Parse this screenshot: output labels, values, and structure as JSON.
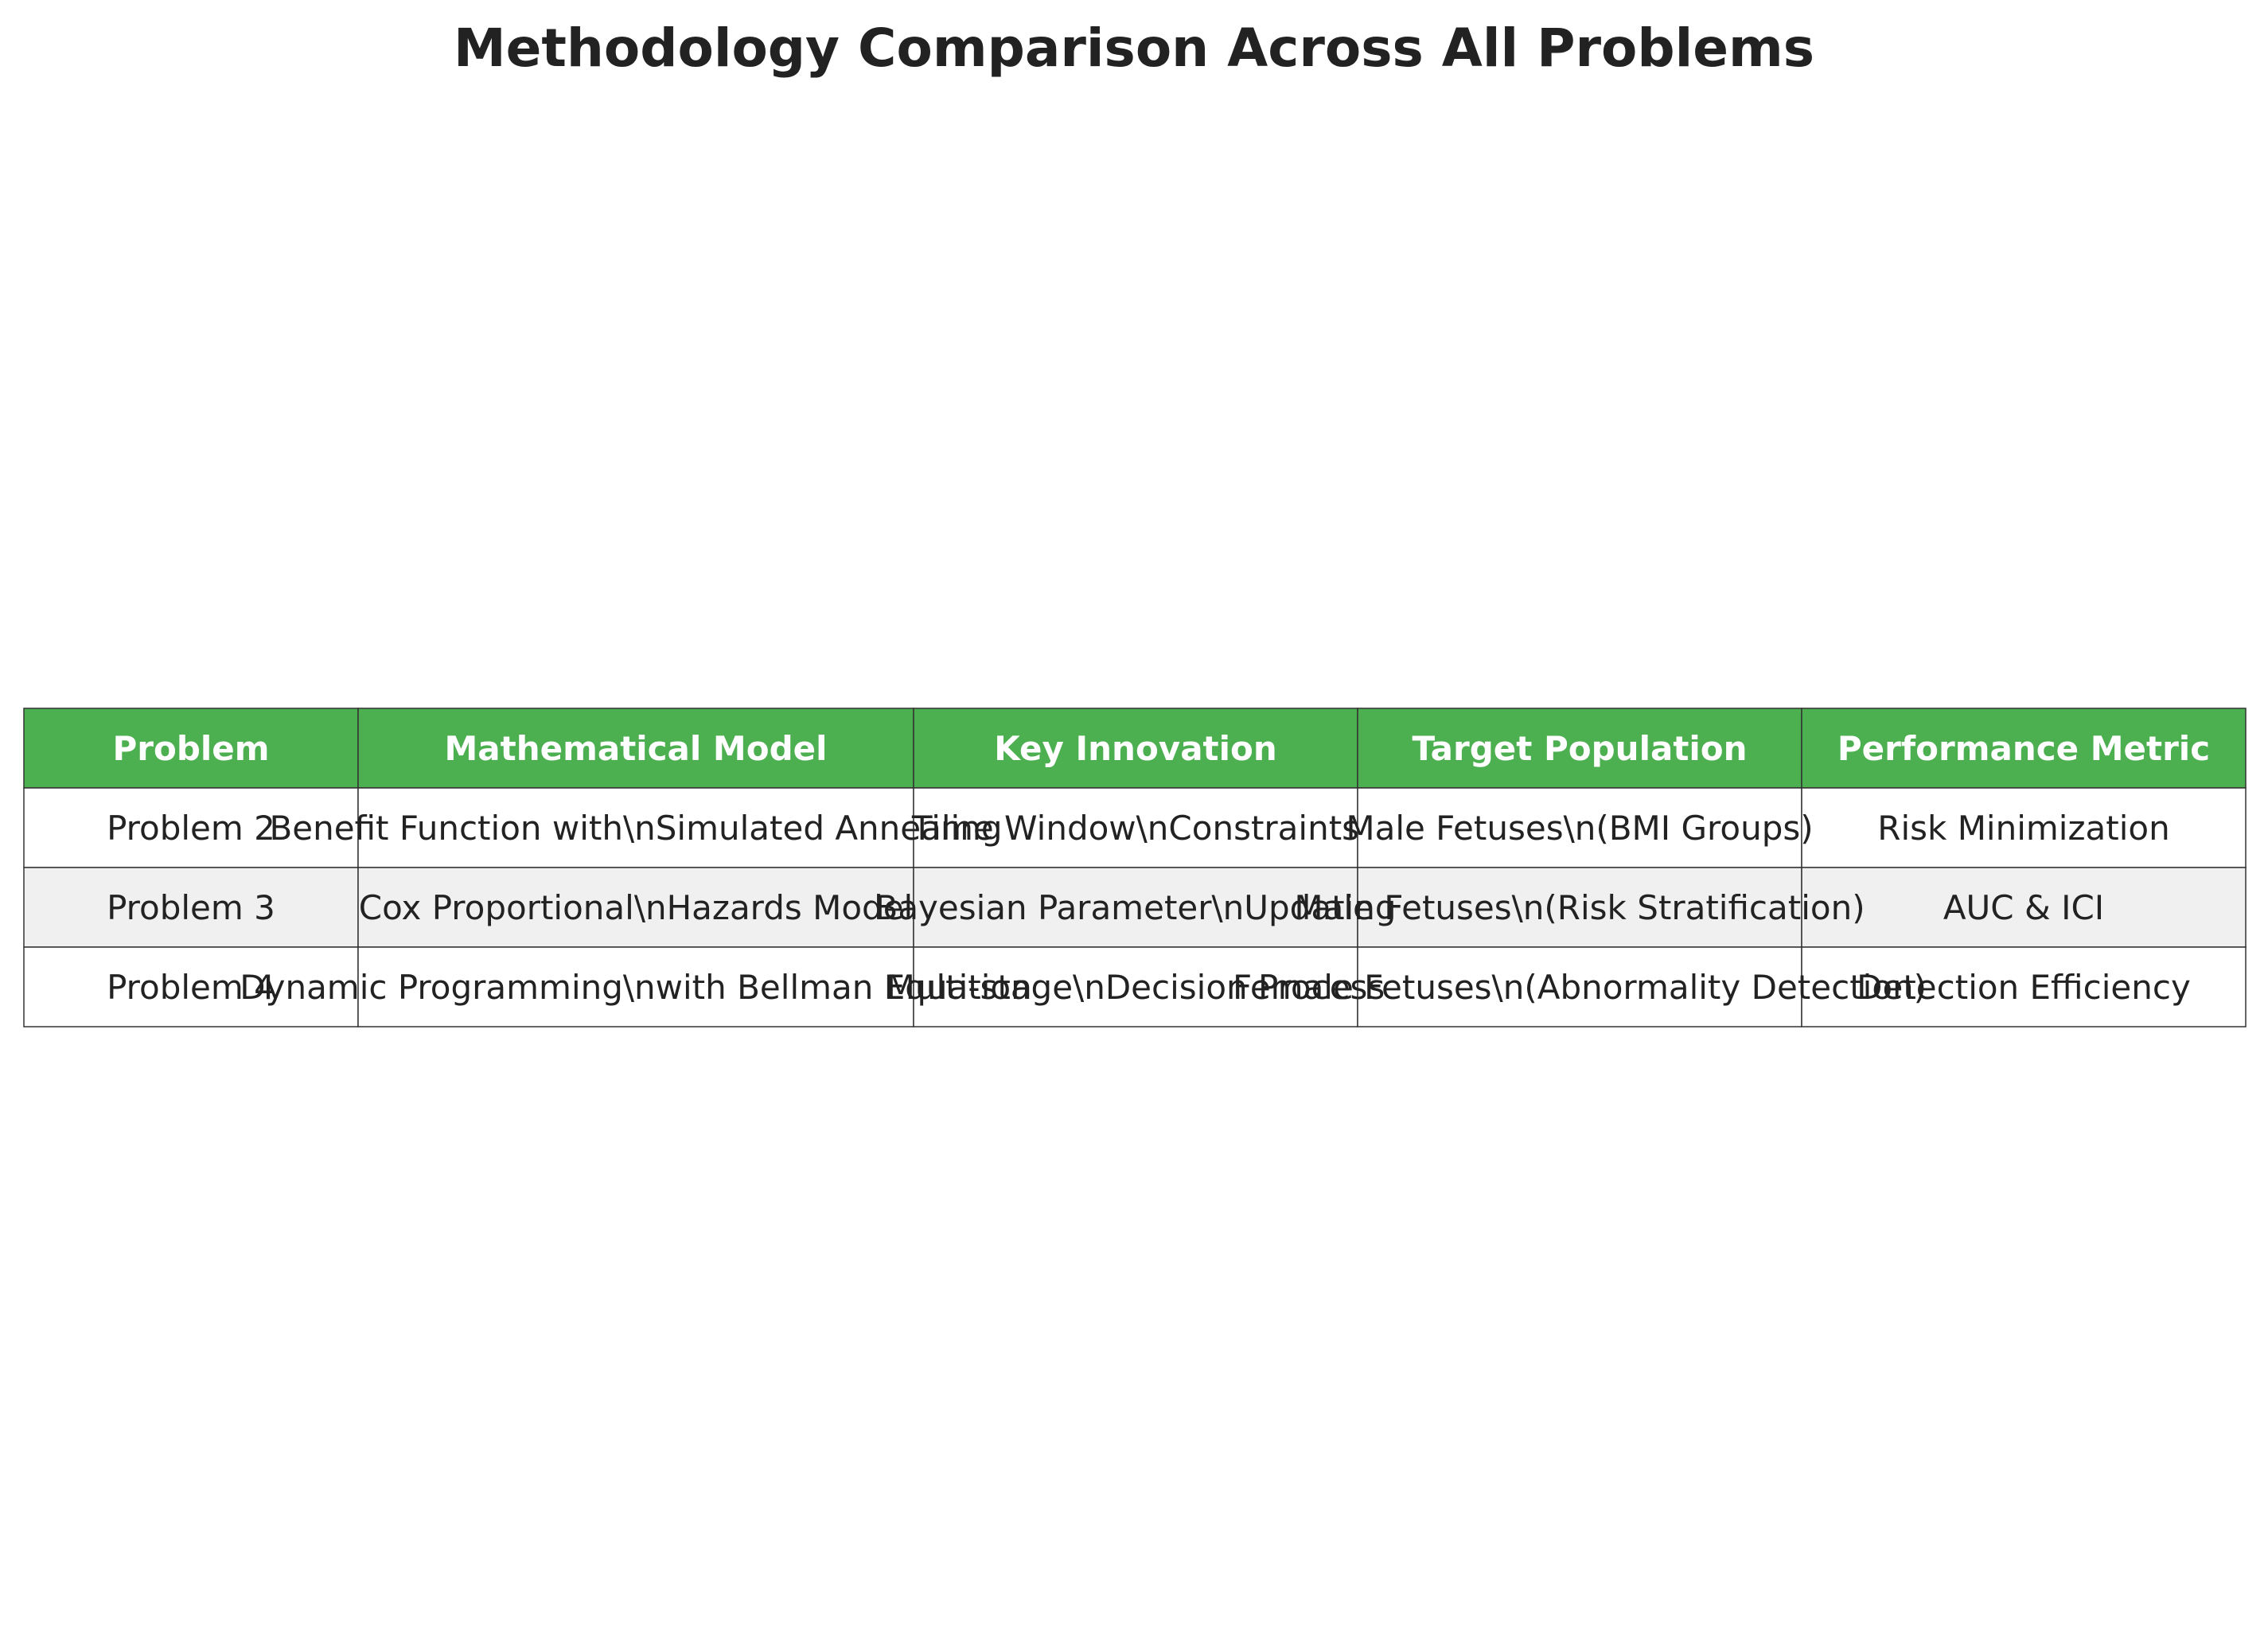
{
  "colors": {
    "header_bg": "#4caf50",
    "row_odd_bg": "#ffffff",
    "row_even_bg": "#f0f0f0",
    "border": "#333333",
    "header_text": "#ffffff",
    "cell_text": "#222222"
  },
  "chart_data": {
    "type": "table",
    "title": "Methodology Comparison Across All Problems",
    "columns": [
      "Problem",
      "Mathematical Model",
      "Key Innovation",
      "Target Population",
      "Performance Metric"
    ],
    "rows": [
      [
        "Problem 2",
        "Benefit Function with\\nSimulated Annealing",
        "Time Window\\nConstraints",
        "Male Fetuses\\n(BMI Groups)",
        "Risk Minimization"
      ],
      [
        "Problem 3",
        "Cox Proportional\\nHazards Model",
        "Bayesian Parameter\\nUpdating",
        "Male Fetuses\\n(Risk Stratification)",
        "AUC & ICI"
      ],
      [
        "Problem 4",
        "Dynamic Programming\\nwith Bellman Equation",
        "Multi-stage\\nDecision Process",
        "Female Fetuses\\n(Abnormality Detection)",
        "Detection Efficiency"
      ]
    ]
  }
}
